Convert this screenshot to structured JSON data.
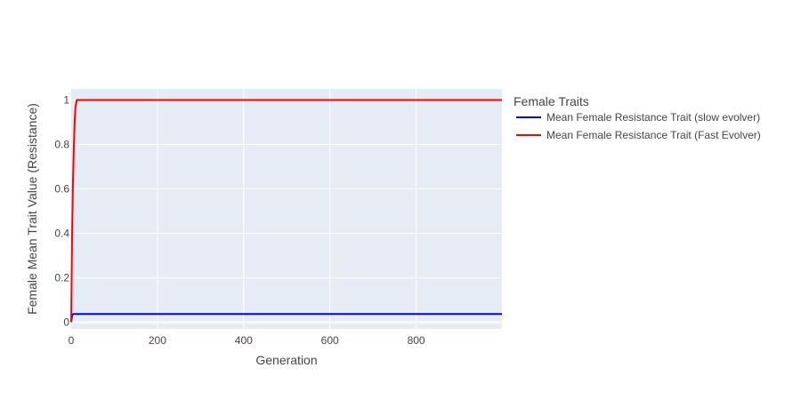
{
  "chart_data": {
    "type": "line",
    "title": "",
    "xlabel": "Generation",
    "ylabel": "Female Mean Trait Value (Resistance)",
    "xlim": [
      0,
      999
    ],
    "ylim": [
      -0.03,
      1.05
    ],
    "x_ticks": [
      0,
      200,
      400,
      600,
      800
    ],
    "y_ticks": [
      0,
      0.2,
      0.4,
      0.6,
      0.8,
      1
    ],
    "x_tick_labels": [
      "0",
      "200",
      "400",
      "600",
      "800"
    ],
    "y_tick_labels": [
      "0",
      "0.2",
      "0.4",
      "0.6",
      "0.8",
      "1"
    ],
    "grid": true,
    "legend": {
      "title": "Female Traits",
      "placement": "right"
    },
    "series": [
      {
        "name": "Mean Female Resistance Trait (slow evolver)",
        "color": "#0000ff",
        "x": [
          0,
          2,
          4,
          6,
          10,
          999
        ],
        "y": [
          0.0,
          0.028,
          0.036,
          0.037,
          0.037,
          0.037
        ]
      },
      {
        "name": "Mean Female Resistance Trait (Fast Evolver)",
        "color": "#ff0000",
        "x": [
          0,
          2,
          4,
          6,
          8,
          10,
          13,
          999
        ],
        "y": [
          0.0,
          0.38,
          0.62,
          0.78,
          0.9,
          0.97,
          1.0,
          1.0
        ]
      }
    ]
  },
  "style": {
    "plot_bg": "#e5ecf6",
    "grid_color": "#ffffff",
    "text_color": "#444444"
  }
}
